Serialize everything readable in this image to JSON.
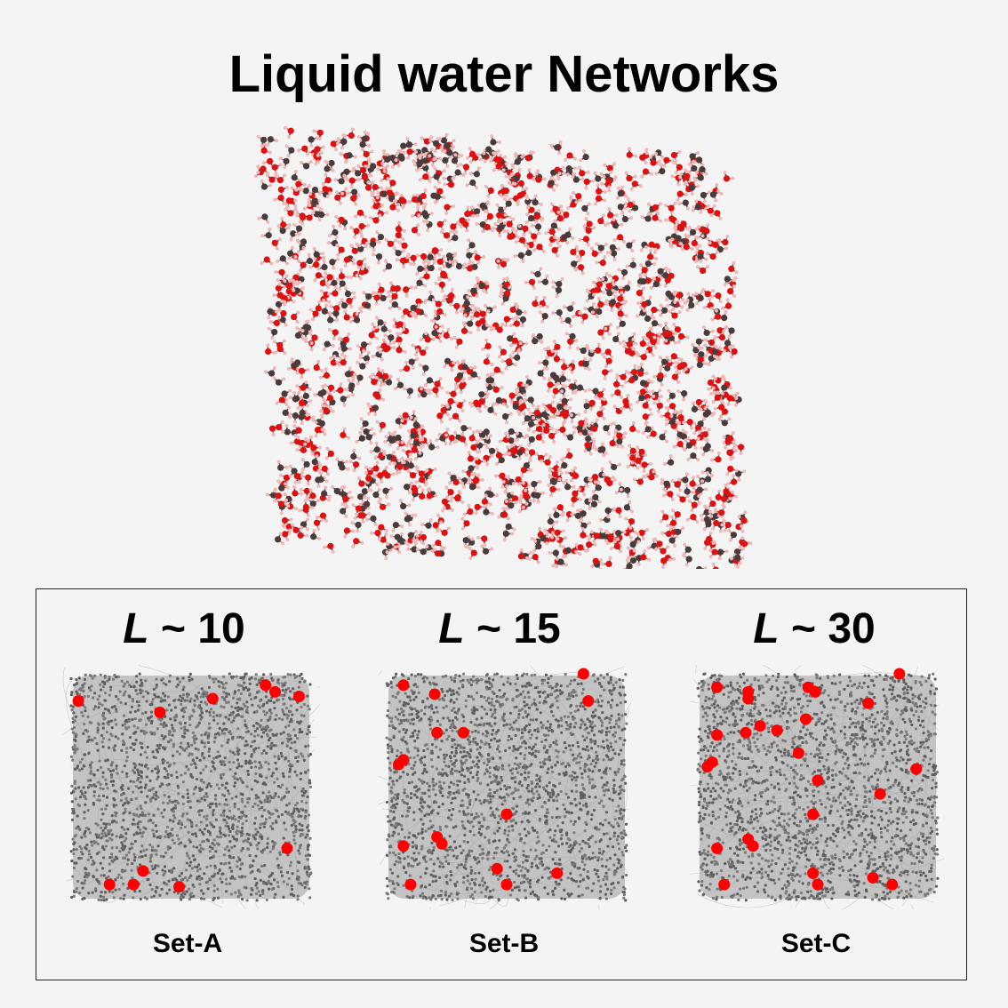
{
  "figure": {
    "title": "Liquid water Networks"
  },
  "panels": [
    {
      "symbol": "L",
      "tilde": "~",
      "value": "10",
      "set_label": "Set-A",
      "highlighted_nodes": [
        [
          0.03,
          0.12
        ],
        [
          0.37,
          0.17
        ],
        [
          0.59,
          0.11
        ],
        [
          0.81,
          0.05
        ],
        [
          0.85,
          0.08
        ],
        [
          0.95,
          0.1
        ],
        [
          0.9,
          0.77
        ],
        [
          0.3,
          0.87
        ],
        [
          0.16,
          0.93
        ],
        [
          0.26,
          0.93
        ],
        [
          0.45,
          0.94
        ]
      ]
    },
    {
      "symbol": "L",
      "tilde": "~",
      "value": "15",
      "set_label": "Set-B",
      "highlighted_nodes": [
        [
          0.07,
          0.05
        ],
        [
          0.2,
          0.09
        ],
        [
          0.84,
          0.12
        ],
        [
          0.82,
          0.0
        ],
        [
          0.21,
          0.26
        ],
        [
          0.32,
          0.26
        ],
        [
          0.07,
          0.38
        ],
        [
          0.05,
          0.4
        ],
        [
          0.5,
          0.62
        ],
        [
          0.21,
          0.72
        ],
        [
          0.23,
          0.75
        ],
        [
          0.07,
          0.76
        ],
        [
          0.46,
          0.86
        ],
        [
          0.5,
          0.93
        ],
        [
          0.71,
          0.88
        ],
        [
          0.1,
          0.93
        ]
      ]
    },
    {
      "symbol": "L",
      "tilde": "~",
      "value": "30",
      "set_label": "Set-C",
      "highlighted_nodes": [
        [
          0.08,
          0.06
        ],
        [
          0.21,
          0.08
        ],
        [
          0.21,
          0.11
        ],
        [
          0.46,
          0.06
        ],
        [
          0.49,
          0.08
        ],
        [
          0.84,
          0.0
        ],
        [
          0.71,
          0.13
        ],
        [
          0.08,
          0.27
        ],
        [
          0.2,
          0.26
        ],
        [
          0.26,
          0.23
        ],
        [
          0.33,
          0.25
        ],
        [
          0.45,
          0.2
        ],
        [
          0.42,
          0.35
        ],
        [
          0.06,
          0.39
        ],
        [
          0.04,
          0.41
        ],
        [
          0.5,
          0.47
        ],
        [
          0.91,
          0.42
        ],
        [
          0.76,
          0.53
        ],
        [
          0.48,
          0.62
        ],
        [
          0.21,
          0.73
        ],
        [
          0.23,
          0.76
        ],
        [
          0.08,
          0.77
        ],
        [
          0.48,
          0.88
        ],
        [
          0.5,
          0.93
        ],
        [
          0.73,
          0.9
        ],
        [
          0.81,
          0.93
        ],
        [
          0.11,
          0.93
        ]
      ]
    }
  ],
  "colors": {
    "background": "#f4f4f4",
    "oxygen": "#e01010",
    "hydrogen": "#f2b8b8",
    "node": "#7a7a7a",
    "highlight": "#ff0000",
    "edge": "#b8b8b8"
  }
}
